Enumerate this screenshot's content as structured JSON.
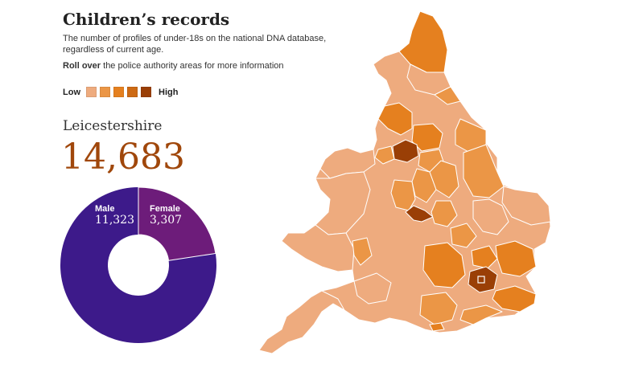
{
  "header": {
    "title": "Children’s records",
    "subtitle": "The number of profiles of under-18s on the national DNA database, regardless of current age.",
    "hint_bold": "Roll over",
    "hint_rest": " the police authority areas for more information"
  },
  "legend": {
    "low_label": "Low",
    "high_label": "High",
    "colors": [
      "#eeab7e",
      "#eb9646",
      "#e5801f",
      "#cd6a14",
      "#9a3f06"
    ]
  },
  "selected_area": {
    "name": "Leicestershire",
    "total": "14,683",
    "male_label": "Male",
    "male_value": "11,323",
    "female_label": "Female",
    "female_value": "3,307"
  },
  "donut_data": {
    "male": 11323,
    "female": 3307,
    "male_color": "#3d1a8a",
    "female_color": "#6d1c7a"
  },
  "map_colors": {
    "level1": "#eeab7e",
    "level2": "#eb9646",
    "level3": "#e5801f",
    "level4": "#cd6a14",
    "level5": "#9a3f06",
    "border": "#ffffff"
  }
}
